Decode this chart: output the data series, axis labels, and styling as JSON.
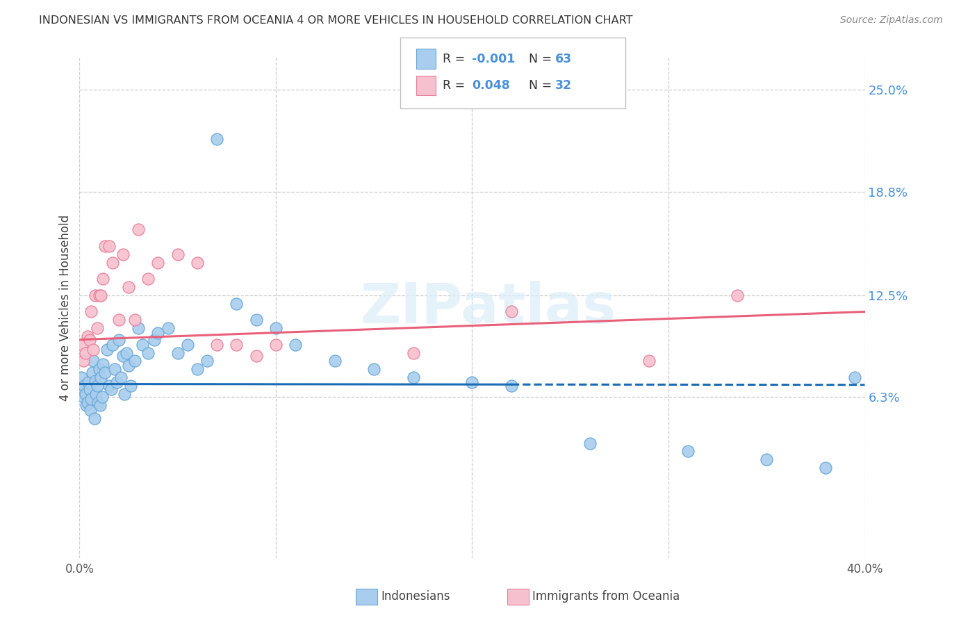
{
  "title": "INDONESIAN VS IMMIGRANTS FROM OCEANIA 4 OR MORE VEHICLES IN HOUSEHOLD CORRELATION CHART",
  "source": "Source: ZipAtlas.com",
  "ylabel": "4 or more Vehicles in Household",
  "ytick_values": [
    6.3,
    12.5,
    18.8,
    25.0
  ],
  "xmin": 0.0,
  "xmax": 40.0,
  "ymin": -3.5,
  "ymax": 27.0,
  "legend_label1": "Indonesians",
  "legend_label2": "Immigrants from Oceania",
  "r1": "-0.001",
  "n1": "63",
  "r2": "0.048",
  "n2": "32",
  "color_blue_fill": "#A8CDED",
  "color_blue_edge": "#6AA8D8",
  "color_pink_fill": "#F7C0CE",
  "color_pink_edge": "#E8809A",
  "color_trendline_blue": "#1A6BB5",
  "color_trendline_pink": "#E8607A",
  "blue_trendline_y0": 7.1,
  "blue_trendline_y1": 7.05,
  "pink_trendline_y0": 9.8,
  "pink_trendline_y1": 11.5,
  "blue_solid_xmax": 22.0,
  "blue_x": [
    0.1,
    0.15,
    0.2,
    0.25,
    0.3,
    0.35,
    0.4,
    0.45,
    0.5,
    0.55,
    0.6,
    0.65,
    0.7,
    0.75,
    0.8,
    0.85,
    0.9,
    0.95,
    1.0,
    1.05,
    1.1,
    1.15,
    1.2,
    1.3,
    1.4,
    1.5,
    1.6,
    1.7,
    1.8,
    1.9,
    2.0,
    2.1,
    2.2,
    2.3,
    2.4,
    2.5,
    2.6,
    2.8,
    3.0,
    3.2,
    3.5,
    3.8,
    4.0,
    4.5,
    5.0,
    5.5,
    6.0,
    6.5,
    7.0,
    8.0,
    9.0,
    10.0,
    11.0,
    13.0,
    15.0,
    17.0,
    20.0,
    22.0,
    26.0,
    31.0,
    35.0,
    38.0,
    39.5
  ],
  "blue_y": [
    7.5,
    6.8,
    6.3,
    7.0,
    6.5,
    5.8,
    6.0,
    7.2,
    6.8,
    5.5,
    6.2,
    7.8,
    8.5,
    5.0,
    7.3,
    6.5,
    7.0,
    6.0,
    8.0,
    5.8,
    7.5,
    6.3,
    8.3,
    7.8,
    9.2,
    7.0,
    6.8,
    9.5,
    8.0,
    7.2,
    9.8,
    7.5,
    8.8,
    6.5,
    9.0,
    8.2,
    7.0,
    8.5,
    10.5,
    9.5,
    9.0,
    9.8,
    10.2,
    10.5,
    9.0,
    9.5,
    8.0,
    8.5,
    22.0,
    12.0,
    11.0,
    10.5,
    9.5,
    8.5,
    8.0,
    7.5,
    7.2,
    7.0,
    3.5,
    3.0,
    2.5,
    2.0,
    7.5
  ],
  "pink_x": [
    0.1,
    0.2,
    0.3,
    0.4,
    0.5,
    0.6,
    0.7,
    0.8,
    0.9,
    1.0,
    1.1,
    1.2,
    1.3,
    1.5,
    1.7,
    2.0,
    2.2,
    2.5,
    2.8,
    3.0,
    3.5,
    4.0,
    5.0,
    6.0,
    7.0,
    8.0,
    9.0,
    10.0,
    17.0,
    22.0,
    29.0,
    33.5
  ],
  "pink_y": [
    9.5,
    8.5,
    9.0,
    10.0,
    9.8,
    11.5,
    9.2,
    12.5,
    10.5,
    12.5,
    12.5,
    13.5,
    15.5,
    15.5,
    14.5,
    11.0,
    15.0,
    13.0,
    11.0,
    16.5,
    13.5,
    14.5,
    15.0,
    14.5,
    9.5,
    9.5,
    8.8,
    9.5,
    9.0,
    11.5,
    8.5,
    12.5
  ]
}
